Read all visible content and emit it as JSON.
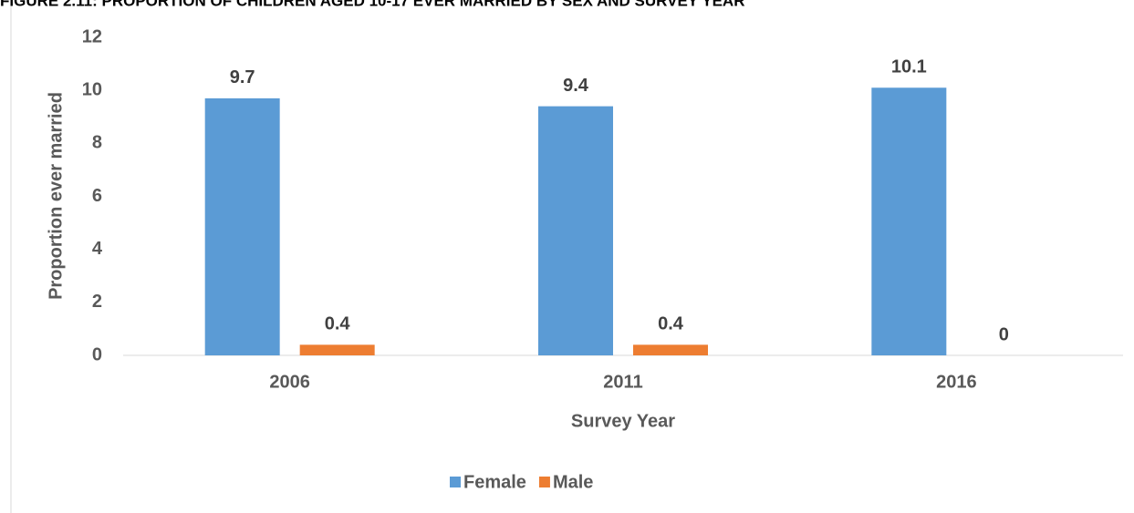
{
  "chart_data": {
    "type": "bar",
    "title": "FIGURE 2.11: PROPORTION OF CHILDREN AGED 10-17 EVER MARRIED BY SEX AND SURVEY YEAR",
    "x_label": "Survey Year",
    "y_label": "Proportion ever married",
    "categories": [
      "2006",
      "2011",
      "2016"
    ],
    "series": [
      {
        "name": "Female",
        "color": "#5b9bd5",
        "values": [
          9.7,
          9.4,
          10.1
        ]
      },
      {
        "name": "Male",
        "color": "#ed7d31",
        "values": [
          0.4,
          0.4,
          0
        ]
      }
    ],
    "ylim": [
      0,
      12
    ],
    "yticks": [
      0,
      2,
      4,
      6,
      8,
      10,
      12
    ],
    "grid": false,
    "legend": "bottom"
  }
}
